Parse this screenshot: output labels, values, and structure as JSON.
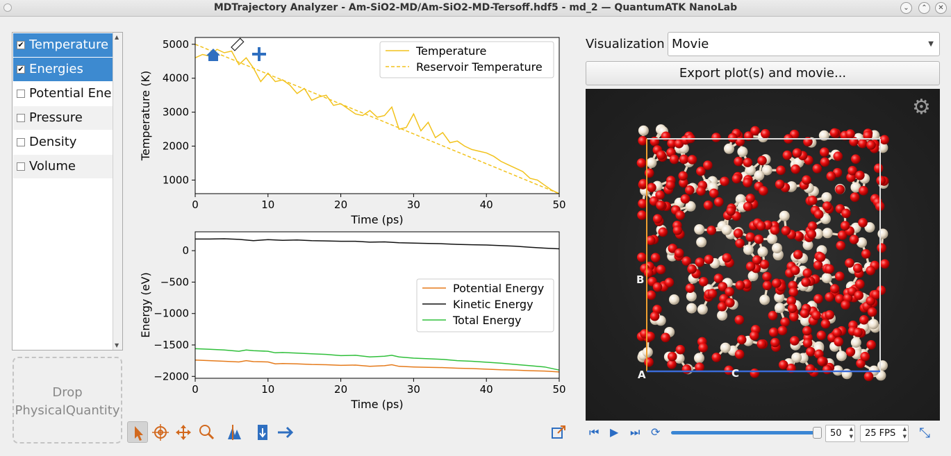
{
  "window": {
    "title": "MDTrajectory Analyzer - Am-SiO2-MD/Am-SiO2-MD-Tersoff.hdf5 - md_2 — QuantumATK NanoLab"
  },
  "quantities": [
    {
      "label": "Temperature",
      "checked": true,
      "selected": true
    },
    {
      "label": "Energies",
      "checked": true,
      "selected": true
    },
    {
      "label": "Potential Energy",
      "checked": false,
      "selected": false
    },
    {
      "label": "Pressure",
      "checked": false,
      "selected": false
    },
    {
      "label": "Density",
      "checked": false,
      "selected": false
    },
    {
      "label": "Volume",
      "checked": false,
      "selected": false
    }
  ],
  "drop_label": "Drop PhysicalQuantity",
  "visualization": {
    "label": "Visualization",
    "mode": "Movie",
    "export_label": "Export plot(s) and movie..."
  },
  "movie": {
    "frame": "50",
    "fps": "25 FPS"
  },
  "cell_axes": [
    "A",
    "B",
    "C"
  ],
  "chart_data": [
    {
      "type": "line",
      "xlabel": "Time (ps)",
      "ylabel": "Temperature (K)",
      "xlim": [
        0,
        50
      ],
      "ylim": [
        600,
        5200
      ],
      "xticks": [
        0,
        10,
        20,
        30,
        40,
        50
      ],
      "yticks": [
        1000,
        2000,
        3000,
        4000,
        5000
      ],
      "legend": "top-right",
      "series": [
        {
          "name": "Temperature",
          "color": "#f2c21b",
          "dash": false,
          "x": [
            0,
            1,
            2,
            3,
            4,
            5,
            6,
            7,
            8,
            9,
            10,
            11,
            12,
            13,
            14,
            15,
            16,
            17,
            18,
            19,
            20,
            21,
            22,
            23,
            24,
            25,
            26,
            27,
            28,
            29,
            30,
            31,
            32,
            33,
            34,
            35,
            36,
            37,
            38,
            39,
            40,
            41,
            42,
            43,
            44,
            45,
            46,
            47,
            48,
            49,
            50
          ],
          "y": [
            4600,
            4700,
            4650,
            4850,
            4750,
            4800,
            4400,
            4600,
            4300,
            3900,
            4150,
            3900,
            3950,
            3800,
            3550,
            3700,
            3350,
            3450,
            3500,
            3200,
            3250,
            3100,
            2950,
            2900,
            3050,
            2850,
            2900,
            3150,
            2500,
            2550,
            2950,
            2450,
            2700,
            2250,
            2400,
            2100,
            2150,
            2000,
            1900,
            1850,
            1800,
            1700,
            1550,
            1450,
            1350,
            1250,
            1050,
            1000,
            850,
            700,
            600
          ]
        },
        {
          "name": "Reservoir Temperature",
          "color": "#f2c21b",
          "dash": true,
          "x": [
            0,
            50
          ],
          "y": [
            5000,
            600
          ]
        }
      ]
    },
    {
      "type": "line",
      "xlabel": "Time (ps)",
      "ylabel": "Energy (eV)",
      "xlim": [
        0,
        50
      ],
      "ylim": [
        -2030,
        300
      ],
      "xticks": [
        0,
        10,
        20,
        30,
        40,
        50
      ],
      "yticks": [
        -2000,
        -1500,
        -1000,
        -500,
        0
      ],
      "legend": "center-right",
      "series": [
        {
          "name": "Potential Energy",
          "color": "#e57a1a",
          "x": [
            0,
            2,
            4,
            6,
            7,
            8,
            10,
            11,
            12,
            14,
            16,
            18,
            20,
            22,
            24,
            26,
            27,
            28,
            30,
            32,
            34,
            36,
            38,
            40,
            42,
            44,
            46,
            48,
            50
          ],
          "y": [
            -1740,
            -1750,
            -1760,
            -1770,
            -1750,
            -1765,
            -1770,
            -1800,
            -1795,
            -1800,
            -1810,
            -1815,
            -1825,
            -1820,
            -1840,
            -1830,
            -1815,
            -1840,
            -1850,
            -1855,
            -1860,
            -1870,
            -1875,
            -1885,
            -1895,
            -1900,
            -1910,
            -1915,
            -1930
          ]
        },
        {
          "name": "Kinetic Energy",
          "color": "#111111",
          "x": [
            0,
            2,
            4,
            6,
            8,
            10,
            12,
            14,
            16,
            18,
            20,
            22,
            24,
            26,
            28,
            30,
            32,
            34,
            36,
            38,
            40,
            42,
            44,
            46,
            48,
            50
          ],
          "y": [
            185,
            185,
            190,
            180,
            160,
            175,
            165,
            170,
            160,
            155,
            150,
            150,
            135,
            140,
            125,
            120,
            115,
            110,
            100,
            95,
            90,
            80,
            70,
            55,
            40,
            30
          ]
        },
        {
          "name": "Total Energy",
          "color": "#2fbf3a",
          "x": [
            0,
            2,
            4,
            6,
            7,
            8,
            10,
            11,
            12,
            14,
            16,
            18,
            20,
            22,
            24,
            26,
            27,
            28,
            30,
            32,
            34,
            36,
            38,
            40,
            42,
            44,
            46,
            48,
            50
          ],
          "y": [
            -1560,
            -1570,
            -1580,
            -1600,
            -1580,
            -1590,
            -1600,
            -1625,
            -1620,
            -1630,
            -1640,
            -1650,
            -1670,
            -1665,
            -1690,
            -1680,
            -1665,
            -1690,
            -1710,
            -1720,
            -1730,
            -1750,
            -1760,
            -1775,
            -1790,
            -1810,
            -1830,
            -1850,
            -1900
          ]
        }
      ]
    }
  ]
}
